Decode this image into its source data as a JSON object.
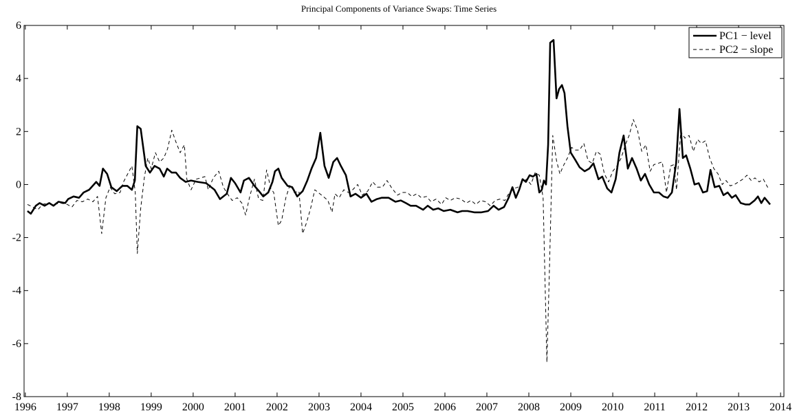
{
  "chart_data": {
    "type": "line",
    "title": "Principal Components of Variance Swaps: Time Series",
    "xlim": [
      1995.97,
      2014.08
    ],
    "ylim": [
      -8,
      6
    ],
    "xticks": [
      1996,
      1997,
      1998,
      1999,
      2000,
      2001,
      2002,
      2003,
      2004,
      2005,
      2006,
      2007,
      2008,
      2009,
      2010,
      2011,
      2012,
      2013,
      2014
    ],
    "yticks": [
      -8,
      -6,
      -4,
      -2,
      0,
      2,
      4,
      6
    ],
    "legend": "upper right",
    "series": [
      {
        "name": "PC1 − level",
        "color": "#000000",
        "style": "solid",
        "x": [
          1996.05,
          1996.13,
          1996.25,
          1996.34,
          1996.46,
          1996.57,
          1996.67,
          1996.79,
          1996.95,
          1997.02,
          1997.15,
          1997.28,
          1997.39,
          1997.52,
          1997.69,
          1997.77,
          1997.85,
          1997.95,
          1998.05,
          1998.18,
          1998.31,
          1998.43,
          1998.54,
          1998.61,
          1998.67,
          1998.75,
          1998.87,
          1998.97,
          1999.08,
          1999.2,
          1999.3,
          1999.38,
          1999.49,
          1999.59,
          1999.69,
          1999.82,
          1999.95,
          2000.11,
          2000.31,
          2000.51,
          2000.64,
          2000.8,
          2000.9,
          2001.0,
          2001.13,
          2001.21,
          2001.33,
          2001.46,
          2001.57,
          2001.67,
          2001.79,
          2001.89,
          2001.95,
          2002.03,
          2002.11,
          2002.25,
          2002.36,
          2002.48,
          2002.61,
          2002.72,
          2002.82,
          2002.93,
          2003.03,
          2003.13,
          2003.23,
          2003.34,
          2003.43,
          2003.52,
          2003.64,
          2003.75,
          2003.87,
          2004.0,
          2004.13,
          2004.25,
          2004.38,
          2004.49,
          2004.66,
          2004.82,
          2004.95,
          2005.07,
          2005.18,
          2005.31,
          2005.48,
          2005.59,
          2005.72,
          2005.84,
          2005.97,
          2006.13,
          2006.3,
          2006.41,
          2006.54,
          2006.7,
          2006.87,
          2007.03,
          2007.16,
          2007.28,
          2007.41,
          2007.52,
          2007.61,
          2007.69,
          2007.77,
          2007.85,
          2007.93,
          2008.02,
          2008.1,
          2008.18,
          2008.25,
          2008.31,
          2008.36,
          2008.41,
          2008.46,
          2008.51,
          2008.59,
          2008.66,
          2008.72,
          2008.79,
          2008.85,
          2008.92,
          2009.0,
          2009.1,
          2009.21,
          2009.33,
          2009.44,
          2009.54,
          2009.66,
          2009.75,
          2009.87,
          2009.97,
          2010.07,
          2010.16,
          2010.26,
          2010.36,
          2010.46,
          2010.57,
          2010.67,
          2010.77,
          2010.87,
          2010.98,
          2011.1,
          2011.21,
          2011.31,
          2011.41,
          2011.51,
          2011.59,
          2011.67,
          2011.75,
          2011.85,
          2011.95,
          2012.05,
          2012.15,
          2012.25,
          2012.33,
          2012.43,
          2012.54,
          2012.64,
          2012.74,
          2012.84,
          2012.93,
          2013.05,
          2013.16,
          2013.26,
          2013.38,
          2013.46,
          2013.54,
          2013.62,
          2013.75
        ],
        "values": [
          -1.0,
          -1.1,
          -0.8,
          -0.7,
          -0.8,
          -0.7,
          -0.8,
          -0.65,
          -0.7,
          -0.55,
          -0.45,
          -0.5,
          -0.3,
          -0.2,
          0.1,
          -0.05,
          0.6,
          0.4,
          -0.1,
          -0.25,
          -0.05,
          -0.05,
          -0.2,
          0.15,
          2.2,
          2.1,
          0.7,
          0.45,
          0.7,
          0.6,
          0.3,
          0.6,
          0.45,
          0.45,
          0.25,
          0.1,
          0.15,
          0.1,
          0.05,
          -0.2,
          -0.55,
          -0.35,
          0.25,
          0.05,
          -0.3,
          0.15,
          0.25,
          -0.05,
          -0.25,
          -0.45,
          -0.3,
          0.1,
          0.5,
          0.6,
          0.25,
          -0.05,
          -0.1,
          -0.45,
          -0.25,
          0.15,
          0.6,
          1.0,
          1.95,
          0.7,
          0.25,
          0.85,
          1.0,
          0.7,
          0.35,
          -0.45,
          -0.35,
          -0.5,
          -0.35,
          -0.65,
          -0.55,
          -0.5,
          -0.5,
          -0.65,
          -0.6,
          -0.7,
          -0.8,
          -0.8,
          -0.95,
          -0.8,
          -0.95,
          -0.9,
          -1.0,
          -0.95,
          -1.05,
          -1.0,
          -1.0,
          -1.05,
          -1.05,
          -1.0,
          -0.8,
          -0.95,
          -0.85,
          -0.5,
          -0.1,
          -0.5,
          -0.2,
          0.2,
          0.1,
          0.35,
          0.3,
          0.4,
          -0.3,
          -0.2,
          0.15,
          0.0,
          1.5,
          5.35,
          5.45,
          3.25,
          3.6,
          3.75,
          3.45,
          2.2,
          1.2,
          0.95,
          0.65,
          0.5,
          0.6,
          0.8,
          0.2,
          0.3,
          -0.15,
          -0.3,
          0.2,
          1.2,
          1.85,
          0.6,
          1.0,
          0.6,
          0.15,
          0.4,
          0.0,
          -0.3,
          -0.3,
          -0.45,
          -0.5,
          -0.3,
          0.8,
          2.85,
          1.0,
          1.1,
          0.6,
          0.0,
          0.05,
          -0.3,
          -0.25,
          0.55,
          -0.1,
          -0.05,
          -0.4,
          -0.3,
          -0.5,
          -0.4,
          -0.7,
          -0.75,
          -0.75,
          -0.6,
          -0.45,
          -0.7,
          -0.5,
          -0.75
        ]
      },
      {
        "name": "PC2 − slope",
        "color": "#000000",
        "style": "dashed",
        "x": [
          1996.05,
          1996.18,
          1996.3,
          1996.41,
          1996.54,
          1996.67,
          1996.84,
          1997.0,
          1997.11,
          1997.23,
          1997.36,
          1997.49,
          1997.61,
          1997.72,
          1997.82,
          1997.92,
          1998.02,
          1998.13,
          1998.26,
          1998.34,
          1998.44,
          1998.54,
          1998.62,
          1998.67,
          1998.75,
          1998.84,
          1998.92,
          1999.0,
          1999.1,
          1999.2,
          1999.3,
          1999.39,
          1999.49,
          1999.59,
          1999.69,
          1999.79,
          1999.85,
          1999.95,
          2000.07,
          2000.18,
          2000.28,
          2000.36,
          2000.48,
          2000.61,
          2000.72,
          2000.84,
          2000.93,
          2001.05,
          2001.16,
          2001.25,
          2001.34,
          2001.46,
          2001.56,
          2001.66,
          2001.75,
          2001.85,
          2001.92,
          2002.03,
          2002.11,
          2002.21,
          2002.31,
          2002.41,
          2002.52,
          2002.61,
          2002.7,
          2002.8,
          2002.9,
          2002.98,
          2003.1,
          2003.21,
          2003.31,
          2003.38,
          2003.48,
          2003.59,
          2003.7,
          2003.8,
          2003.92,
          2004.03,
          2004.16,
          2004.28,
          2004.39,
          2004.51,
          2004.62,
          2004.74,
          2004.87,
          2004.98,
          2005.1,
          2005.21,
          2005.33,
          2005.44,
          2005.56,
          2005.67,
          2005.79,
          2005.92,
          2006.02,
          2006.13,
          2006.25,
          2006.38,
          2006.51,
          2006.62,
          2006.74,
          2006.85,
          2006.97,
          2007.08,
          2007.2,
          2007.31,
          2007.43,
          2007.52,
          2007.64,
          2007.74,
          2007.85,
          2007.95,
          2008.05,
          2008.15,
          2008.25,
          2008.34,
          2008.43,
          2008.49,
          2008.57,
          2008.66,
          2008.74,
          2008.82,
          2008.92,
          2009.02,
          2009.11,
          2009.21,
          2009.31,
          2009.41,
          2009.51,
          2009.61,
          2009.7,
          2009.8,
          2009.9,
          2010.0,
          2010.1,
          2010.2,
          2010.3,
          2010.39,
          2010.49,
          2010.59,
          2010.69,
          2010.79,
          2010.89,
          2010.98,
          2011.08,
          2011.18,
          2011.28,
          2011.38,
          2011.46,
          2011.52,
          2011.62,
          2011.72,
          2011.82,
          2011.92,
          2012.02,
          2012.11,
          2012.21,
          2012.31,
          2012.41,
          2012.51,
          2012.61,
          2012.7,
          2012.8,
          2012.9,
          2013.0,
          2013.1,
          2013.2,
          2013.3,
          2013.39,
          2013.49,
          2013.59,
          2013.69,
          2013.75
        ],
        "values": [
          -0.75,
          -0.85,
          -0.95,
          -0.75,
          -0.7,
          -0.75,
          -0.7,
          -0.75,
          -0.85,
          -0.6,
          -0.65,
          -0.55,
          -0.65,
          -0.45,
          -1.85,
          -0.5,
          -0.1,
          -0.35,
          -0.3,
          0.1,
          0.4,
          0.7,
          -0.3,
          -2.6,
          -0.9,
          0.3,
          1.0,
          0.6,
          1.2,
          0.85,
          1.0,
          1.35,
          2.05,
          1.6,
          1.2,
          1.5,
          0.2,
          -0.2,
          0.2,
          0.25,
          0.3,
          -0.2,
          0.25,
          0.5,
          -0.1,
          -0.4,
          -0.6,
          -0.5,
          -0.7,
          -1.15,
          -0.5,
          0.2,
          -0.55,
          -0.6,
          0.55,
          -0.15,
          -0.3,
          -1.55,
          -1.35,
          -0.5,
          0.0,
          -0.3,
          -0.25,
          -1.85,
          -1.45,
          -0.9,
          -0.2,
          -0.3,
          -0.45,
          -0.6,
          -1.05,
          -0.35,
          -0.5,
          -0.2,
          -0.3,
          -0.2,
          0.0,
          -0.4,
          -0.25,
          0.1,
          -0.1,
          -0.1,
          0.15,
          -0.15,
          -0.4,
          -0.3,
          -0.3,
          -0.45,
          -0.35,
          -0.5,
          -0.45,
          -0.65,
          -0.55,
          -0.75,
          -0.5,
          -0.6,
          -0.5,
          -0.55,
          -0.7,
          -0.6,
          -0.75,
          -0.6,
          -0.65,
          -0.8,
          -0.6,
          -0.55,
          -0.6,
          -0.35,
          -0.15,
          -0.1,
          0.1,
          0.2,
          0.0,
          0.45,
          0.35,
          -0.5,
          -6.7,
          -3.3,
          1.85,
          0.9,
          0.4,
          0.7,
          1.0,
          1.4,
          1.3,
          1.3,
          1.55,
          0.9,
          0.8,
          1.25,
          1.15,
          0.4,
          0.1,
          0.5,
          0.7,
          1.0,
          1.5,
          1.85,
          2.45,
          2.05,
          1.25,
          1.5,
          0.5,
          0.75,
          0.8,
          0.85,
          -0.3,
          0.7,
          0.75,
          -0.2,
          2.0,
          1.75,
          1.85,
          1.25,
          1.7,
          1.55,
          1.65,
          1.0,
          0.6,
          0.4,
          0.0,
          0.15,
          -0.05,
          0.0,
          0.1,
          0.2,
          0.35,
          0.15,
          0.25,
          0.1,
          0.2,
          -0.1,
          -0.05
        ]
      }
    ]
  }
}
